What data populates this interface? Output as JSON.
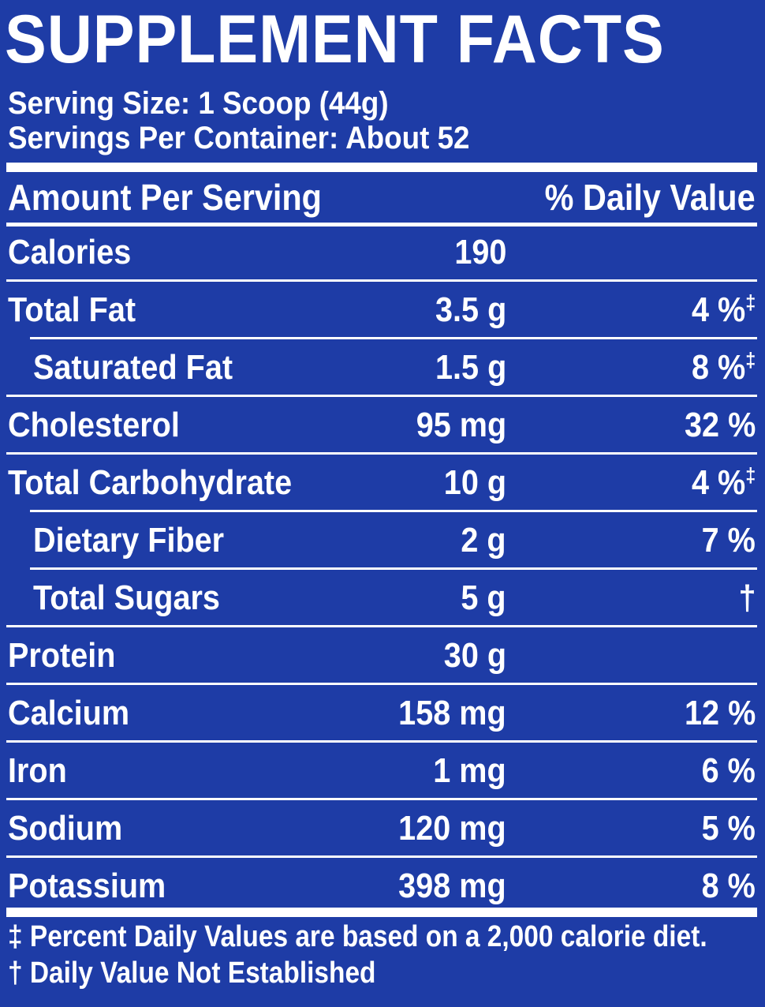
{
  "title": "SUPPLEMENT FACTS",
  "serving_size": "Serving Size: 1 Scoop (44g)",
  "servings_per_container": "Servings Per Container: About 52",
  "header": {
    "amount_label": "Amount Per Serving",
    "dv_label": "% Daily Value"
  },
  "rows": [
    {
      "label": "Calories",
      "amount": "190",
      "dv": "",
      "mark": ""
    },
    {
      "label": "Total Fat",
      "amount": "3.5 g",
      "dv": "4 %",
      "mark": "‡"
    },
    {
      "label": "Saturated Fat",
      "amount": "1.5 g",
      "dv": "8 %",
      "mark": "‡"
    },
    {
      "label": "Cholesterol",
      "amount": "95 mg",
      "dv": "32 %",
      "mark": ""
    },
    {
      "label": "Total Carbohydrate",
      "amount": "10 g",
      "dv": "4 %",
      "mark": "‡"
    },
    {
      "label": "Dietary Fiber",
      "amount": "2 g",
      "dv": "7 %",
      "mark": ""
    },
    {
      "label": "Total Sugars",
      "amount": "5 g",
      "dv": "†",
      "mark": ""
    },
    {
      "label": "Protein",
      "amount": "30 g",
      "dv": "",
      "mark": ""
    },
    {
      "label": "Calcium",
      "amount": "158 mg",
      "dv": "12 %",
      "mark": ""
    },
    {
      "label": "Iron",
      "amount": "1 mg",
      "dv": "6 %",
      "mark": ""
    },
    {
      "label": "Sodium",
      "amount": "120 mg",
      "dv": "5 %",
      "mark": ""
    },
    {
      "label": "Potassium",
      "amount": "398 mg",
      "dv": "8 %",
      "mark": ""
    }
  ],
  "footnotes": {
    "dagger_double": "‡ Percent Daily Values are based on a 2,000 calorie diet.",
    "dagger": "† Daily Value Not Established"
  },
  "colors": {
    "background": "#1e3ca6",
    "text": "#ffffff"
  }
}
